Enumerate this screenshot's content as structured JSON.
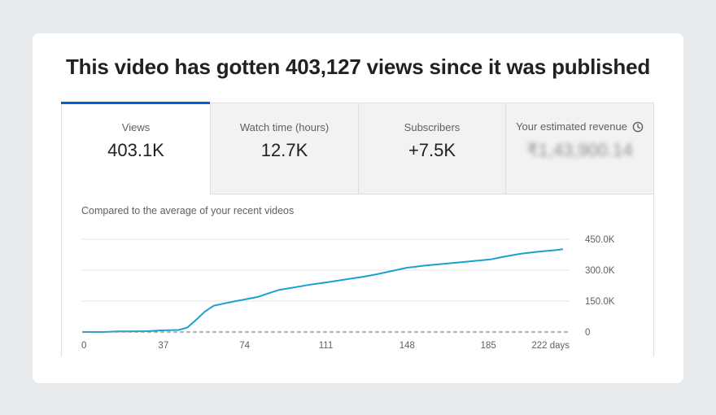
{
  "headline": "This video has gotten 403,127 views since it was published",
  "tabs": [
    {
      "label": "Views",
      "value": "403.1K",
      "active": true
    },
    {
      "label": "Watch time (hours)",
      "value": "12.7K",
      "active": false
    },
    {
      "label": "Subscribers",
      "value": "+7.5K",
      "active": false
    },
    {
      "label": "Your estimated revenue",
      "value": "₹1,43,900.14",
      "active": false,
      "icon": "clock-icon",
      "value_blurred": true
    }
  ],
  "chart_caption": "Compared to the average of your recent videos",
  "colors": {
    "accent": "#065fd4",
    "line": "#1aa0d1",
    "baseline": "#8c8c8c",
    "grid": "#e4e4e4"
  },
  "chart_data": {
    "type": "line",
    "title": "",
    "xlabel": "",
    "ylabel": "",
    "x_ticks": [
      "0",
      "37",
      "74",
      "111",
      "148",
      "185",
      "222 days"
    ],
    "x_tick_values": [
      0,
      37,
      74,
      111,
      148,
      185,
      222
    ],
    "y_ticks": [
      "0",
      "150.0K",
      "300.0K",
      "450.0K"
    ],
    "y_tick_values": [
      0,
      150000,
      300000,
      450000
    ],
    "xlim": [
      0,
      222
    ],
    "ylim": [
      0,
      450000
    ],
    "grid": true,
    "series": [
      {
        "x": [
          0,
          10,
          16,
          20,
          30,
          36,
          44,
          48,
          52,
          56,
          60,
          64,
          70,
          74,
          80,
          86,
          90,
          96,
          104,
          112,
          120,
          128,
          134,
          142,
          148,
          156,
          166,
          176,
          186,
          192,
          200,
          208,
          216,
          219
        ],
        "y": [
          0,
          0,
          3000,
          3000,
          4000,
          8000,
          10000,
          22000,
          60000,
          100000,
          128000,
          137000,
          150000,
          158000,
          170000,
          192000,
          205000,
          215000,
          230000,
          242000,
          255000,
          268000,
          280000,
          298000,
          312000,
          322000,
          332000,
          342000,
          352000,
          365000,
          380000,
          390000,
          398000,
          402000
        ]
      },
      {
        "x": [
          0,
          222
        ],
        "y": [
          0,
          0
        ],
        "style": "dashed"
      }
    ]
  }
}
